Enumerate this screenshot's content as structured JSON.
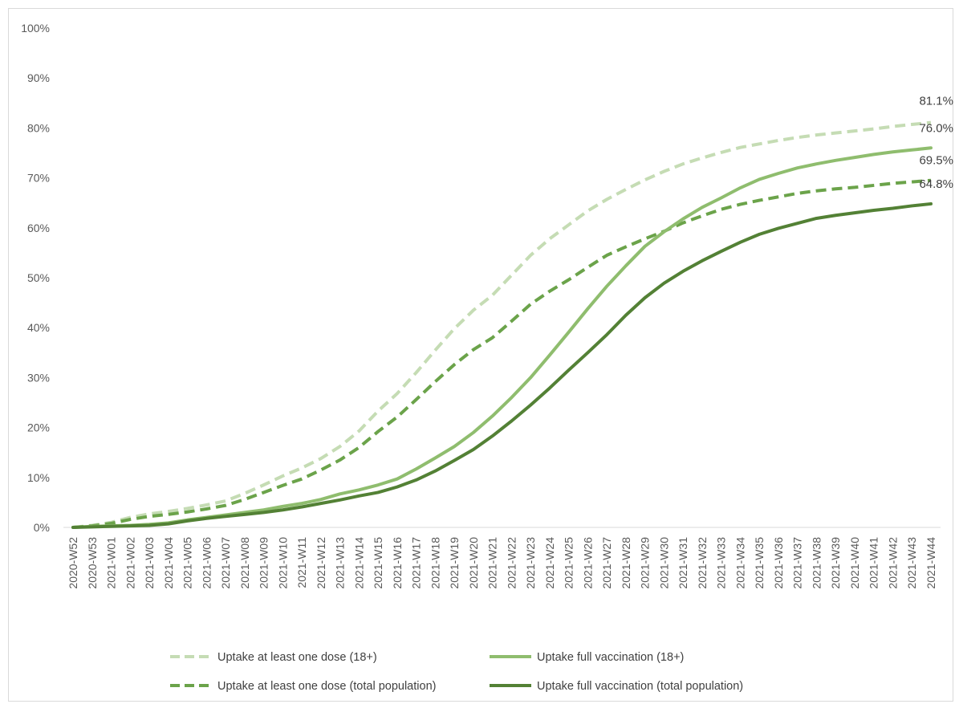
{
  "chart_data": {
    "type": "line",
    "title": "",
    "xlabel": "",
    "ylabel": "",
    "ylim": [
      0,
      100
    ],
    "yticks": [
      "0%",
      "10%",
      "20%",
      "30%",
      "40%",
      "50%",
      "60%",
      "70%",
      "80%",
      "90%",
      "100%"
    ],
    "grid": false,
    "legend_position": "bottom",
    "categories": [
      "2020-W52",
      "2020-W53",
      "2021-W01",
      "2021-W02",
      "2021-W03",
      "2021-W04",
      "2021-W05",
      "2021-W06",
      "2021-W07",
      "2021-W08",
      "2021-W09",
      "2021-W10",
      "2021-W11",
      "2021-W12",
      "2021-W13",
      "2021-W14",
      "2021-W15",
      "2021-W16",
      "2021-W17",
      "2021-W18",
      "2021-W19",
      "2021-W20",
      "2021-W21",
      "2021-W22",
      "2021-W23",
      "2021-W24",
      "2021-W25",
      "2021-W26",
      "2021-W27",
      "2021-W28",
      "2021-W29",
      "2021-W30",
      "2021-W31",
      "2021-W32",
      "2021-W33",
      "2021-W34",
      "2021-W35",
      "2021-W36",
      "2021-W37",
      "2021-W38",
      "2021-W39",
      "2021-W40",
      "2021-W41",
      "2021-W42",
      "2021-W43",
      "2021-W44"
    ],
    "series": [
      {
        "name": "Uptake at least one dose (18+)",
        "color": "#c5dcb4",
        "dash": true,
        "end_label": "81.1%",
        "values": [
          0.0,
          0.4,
          1.0,
          2.0,
          2.7,
          3.2,
          3.8,
          4.5,
          5.3,
          6.8,
          8.5,
          10.3,
          11.9,
          13.8,
          16.2,
          19.3,
          23.3,
          26.8,
          31.0,
          35.5,
          39.8,
          43.5,
          46.5,
          50.5,
          54.5,
          57.8,
          60.6,
          63.4,
          65.7,
          67.7,
          69.6,
          71.3,
          72.8,
          74.0,
          75.1,
          76.1,
          76.8,
          77.5,
          78.1,
          78.6,
          79.0,
          79.4,
          79.8,
          80.3,
          80.7,
          81.1
        ]
      },
      {
        "name": "Uptake full vaccination (18+)",
        "color": "#8fbd6e",
        "dash": false,
        "end_label": "76.0%",
        "values": [
          0.0,
          0.2,
          0.3,
          0.4,
          0.6,
          0.9,
          1.5,
          2.0,
          2.5,
          3.0,
          3.5,
          4.2,
          4.8,
          5.6,
          6.7,
          7.5,
          8.5,
          9.7,
          11.7,
          13.9,
          16.2,
          19.0,
          22.3,
          26.0,
          30.0,
          34.5,
          39.1,
          43.8,
          48.3,
          52.4,
          56.3,
          59.2,
          61.8,
          64.1,
          66.0,
          68.0,
          69.7,
          70.9,
          72.0,
          72.8,
          73.5,
          74.1,
          74.7,
          75.2,
          75.6,
          76.0
        ]
      },
      {
        "name": "Uptake at least one dose (total population)",
        "color": "#6ba34a",
        "dash": true,
        "end_label": "69.5%",
        "values": [
          0.0,
          0.3,
          0.8,
          1.6,
          2.2,
          2.6,
          3.1,
          3.7,
          4.4,
          5.6,
          7.0,
          8.4,
          9.7,
          11.5,
          13.5,
          16.0,
          19.2,
          22.1,
          25.6,
          29.2,
          32.6,
          35.6,
          38.0,
          41.3,
          44.7,
          47.3,
          49.6,
          52.1,
          54.5,
          56.2,
          57.8,
          59.3,
          61.0,
          62.4,
          63.7,
          64.7,
          65.5,
          66.2,
          66.9,
          67.4,
          67.8,
          68.1,
          68.5,
          68.9,
          69.2,
          69.5
        ]
      },
      {
        "name": "Uptake full vaccination (total population)",
        "color": "#538135",
        "dash": false,
        "end_label": "64.8%",
        "values": [
          0.0,
          0.1,
          0.2,
          0.3,
          0.4,
          0.7,
          1.3,
          1.8,
          2.2,
          2.6,
          3.0,
          3.5,
          4.1,
          4.8,
          5.5,
          6.3,
          7.0,
          8.1,
          9.5,
          11.3,
          13.4,
          15.6,
          18.3,
          21.3,
          24.5,
          27.9,
          31.5,
          35.0,
          38.6,
          42.5,
          46.0,
          48.9,
          51.3,
          53.4,
          55.3,
          57.1,
          58.7,
          59.9,
          60.9,
          61.9,
          62.5,
          63.0,
          63.5,
          63.9,
          64.4,
          64.8
        ]
      }
    ]
  }
}
